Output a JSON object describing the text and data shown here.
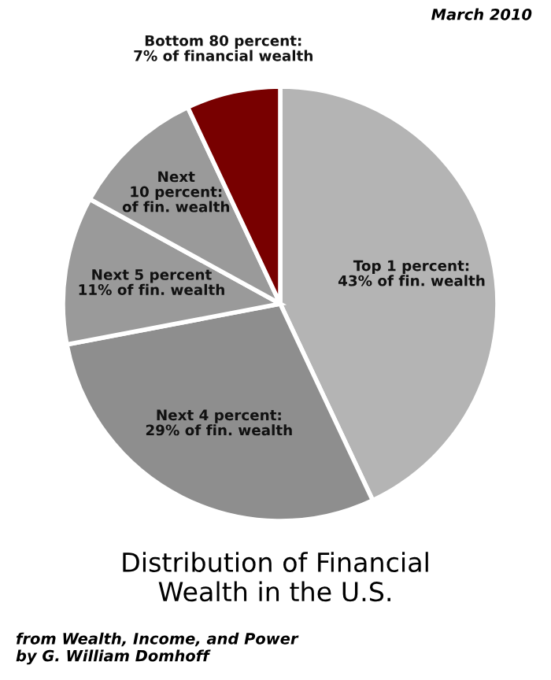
{
  "chart_data": {
    "type": "pie",
    "title": "Distribution of Financial\nWealth in the U.S.",
    "categories": [
      "Top 1 percent",
      "Next 4 percent",
      "Next 5 percent",
      "Next\n10 percent",
      "Bottom 80 percent"
    ],
    "values": [
      43,
      29,
      11,
      10,
      7
    ],
    "value_labels": [
      ":\n43% of fin. wealth",
      ":\n29% of fin. wealth",
      "\n11% of fin. wealth",
      ":\nof fin. wealth",
      ":\n7% of financial wealth"
    ],
    "colors": [
      "#b4b4b4",
      "#8e8e8e",
      "#9a9a9a",
      "#9a9a9a",
      "#780000"
    ],
    "annotations": [
      "March 2010",
      "from Wealth, Income, and Power\nby G. William Domhoff"
    ]
  }
}
